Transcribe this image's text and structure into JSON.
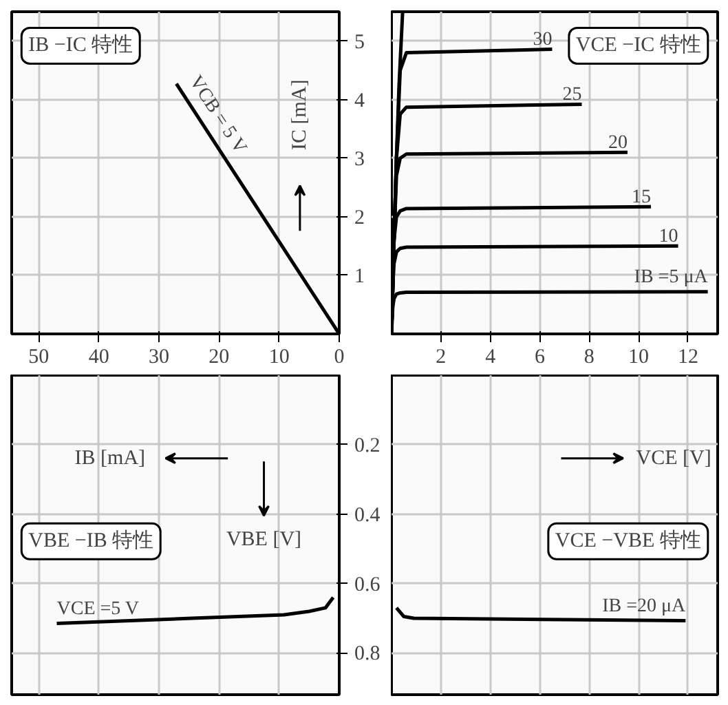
{
  "chart_data": [
    {
      "type": "line",
      "title": "IB −IC 特性",
      "ylabel": "IC [mA]",
      "xlim": [
        54.5,
        0
      ],
      "ylim": [
        0,
        5.5
      ],
      "xticks": [
        0,
        10,
        20,
        30,
        40,
        50
      ],
      "yticks": [
        1,
        2,
        3,
        4,
        5
      ],
      "grid": true,
      "series": [
        {
          "name": "VCB = 5 V",
          "color": "#000000",
          "x": [
            0,
            27.1
          ],
          "values": [
            0,
            4.27
          ]
        }
      ]
    },
    {
      "type": "line",
      "title": "VCE −IC 特性",
      "xlim": [
        0,
        13.2
      ],
      "ylim": [
        0,
        5.5
      ],
      "xticks": [
        2,
        4,
        6,
        8,
        10,
        12
      ],
      "yticks": [
        1,
        2,
        3,
        4,
        5
      ],
      "tick_labels": "x",
      "grid": true,
      "series": [
        {
          "color": "#000000",
          "x": [
            0,
            0.05,
            0.1,
            0.2,
            0.3,
            0.45
          ],
          "values": [
            0,
            0.8,
            1.6,
            3.0,
            4.2,
            5.5
          ]
        },
        {
          "name": "30",
          "color": "#000000",
          "x": [
            0,
            0.05,
            0.1,
            0.2,
            0.35,
            0.6,
            6.5
          ],
          "values": [
            0,
            0.8,
            1.6,
            3.0,
            4.5,
            4.8,
            4.86
          ]
        },
        {
          "name": "25",
          "color": "#000000",
          "x": [
            0,
            0.05,
            0.1,
            0.2,
            0.35,
            0.6,
            7.7
          ],
          "values": [
            0,
            0.8,
            1.6,
            3.0,
            3.75,
            3.87,
            3.92
          ]
        },
        {
          "name": "20",
          "color": "#000000",
          "x": [
            0,
            0.05,
            0.1,
            0.2,
            0.35,
            0.6,
            9.55
          ],
          "values": [
            0,
            0.8,
            1.6,
            2.7,
            3.0,
            3.07,
            3.1
          ]
        },
        {
          "name": "15",
          "color": "#000000",
          "x": [
            0,
            0.05,
            0.1,
            0.2,
            0.35,
            0.6,
            10.5
          ],
          "values": [
            0,
            0.8,
            1.6,
            2.0,
            2.1,
            2.14,
            2.17
          ]
        },
        {
          "name": "10",
          "color": "#000000",
          "x": [
            0,
            0.05,
            0.1,
            0.2,
            0.35,
            0.6,
            11.6
          ],
          "values": [
            0,
            0.8,
            1.2,
            1.4,
            1.46,
            1.48,
            1.5
          ]
        },
        {
          "name": "IB =5 μA",
          "color": "#000000",
          "x": [
            0,
            0.05,
            0.1,
            0.2,
            0.35,
            0.6,
            12.8
          ],
          "values": [
            0,
            0.45,
            0.6,
            0.68,
            0.7,
            0.71,
            0.72
          ]
        }
      ]
    },
    {
      "type": "line",
      "title": "VBE −IB 特性",
      "xlabel": "IB [mA]",
      "ylabel": "VBE [V]",
      "ylim": [
        0.92,
        0
      ],
      "xticks": [
        10,
        20,
        30,
        40,
        50
      ],
      "yticks": [
        0.2,
        0.4,
        0.6,
        0.8
      ],
      "tick_labels": "y",
      "grid": true,
      "series": [
        {
          "name": "VCE =5 V",
          "color": "#000000",
          "x": [
            1,
            2.3,
            5,
            9.2,
            24.5,
            47
          ],
          "values": [
            0.64,
            0.67,
            0.68,
            0.69,
            0.7,
            0.715
          ]
        }
      ]
    },
    {
      "type": "line",
      "title": "VCE −VBE 特性",
      "xlabel": "VCE [V]",
      "xticks": [
        2,
        4,
        6,
        8,
        10,
        12
      ],
      "yticks": [
        0.2,
        0.4,
        0.6,
        0.8
      ],
      "tick_labels": false,
      "grid": true,
      "series": [
        {
          "name": "IB =20 μA",
          "color": "#000000",
          "x": [
            0.2,
            0.5,
            0.9,
            11.9
          ],
          "values": [
            0.67,
            0.695,
            0.7,
            0.707
          ]
        }
      ]
    }
  ]
}
